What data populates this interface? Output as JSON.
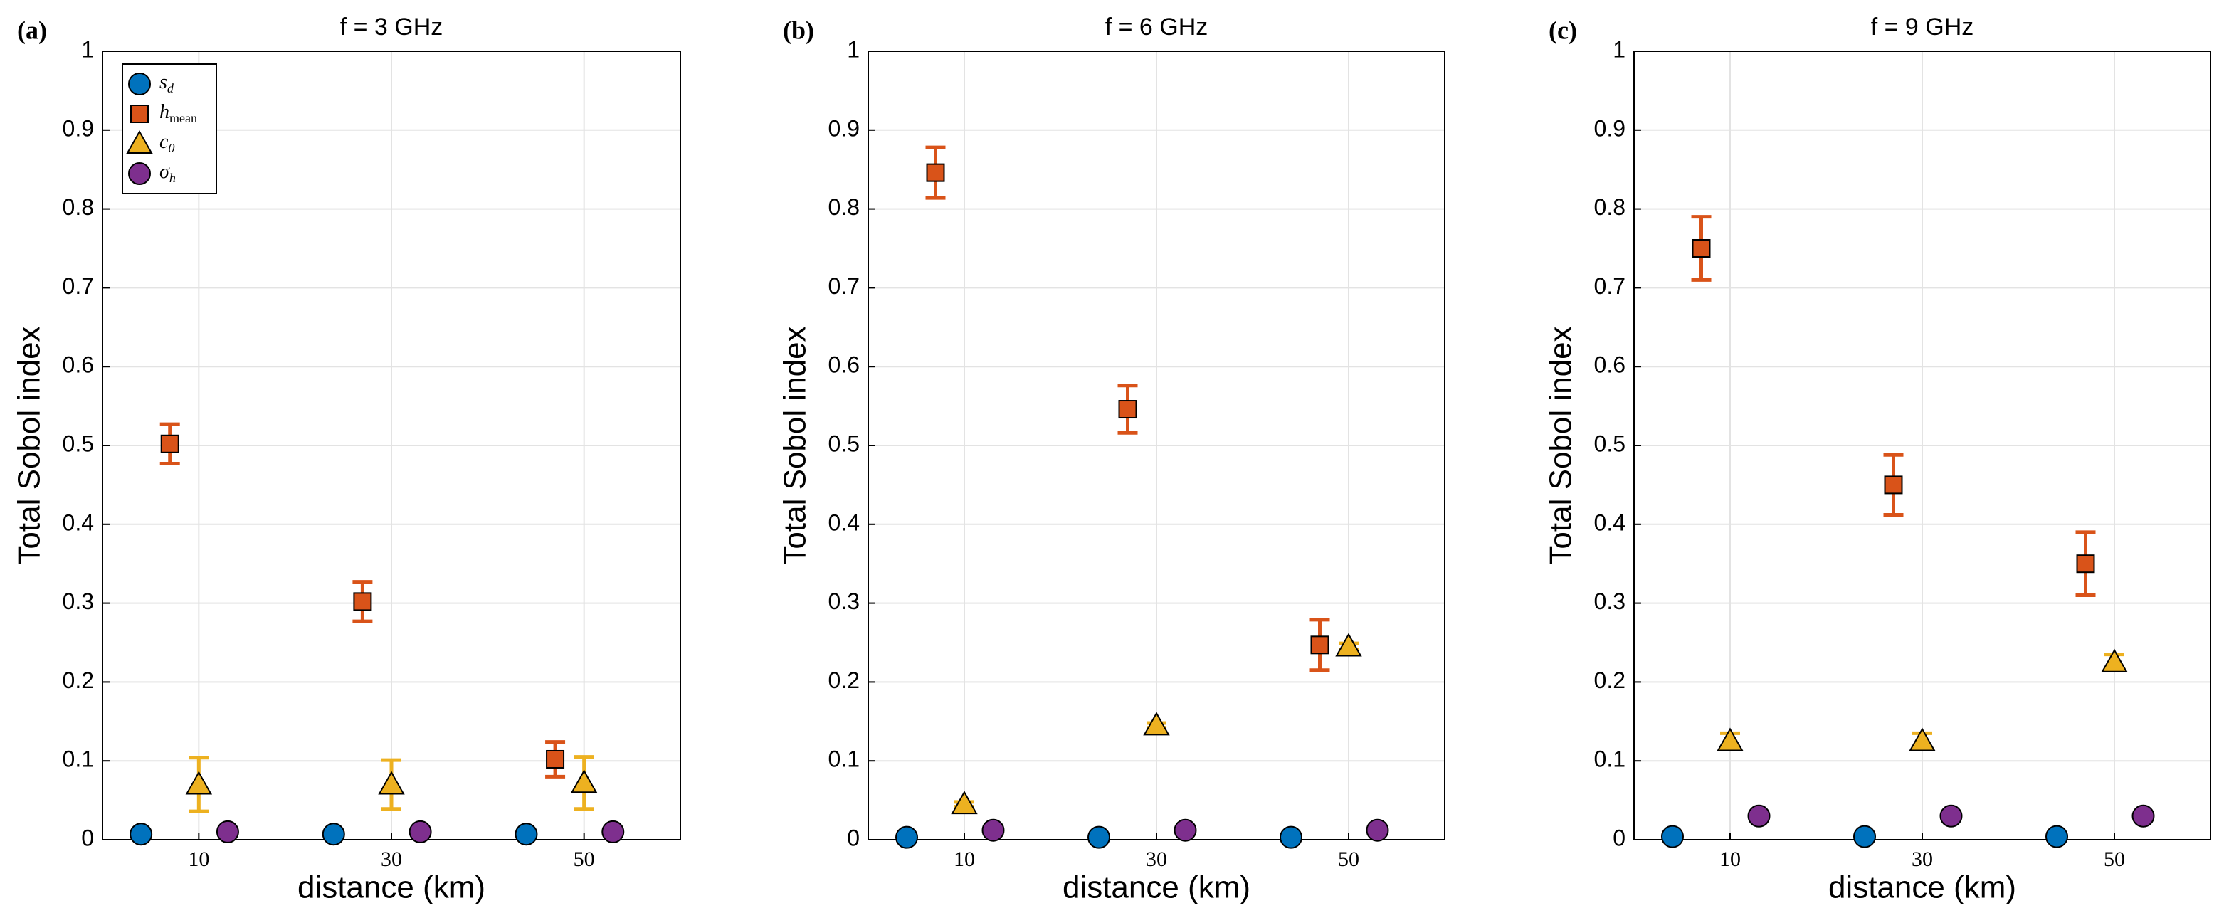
{
  "charts": [
    {
      "type": "scatter",
      "panel_label": "(a)",
      "title": "f = 3 GHz",
      "xlabel": "distance (km)",
      "ylabel": "Total Sobol index",
      "xlim": [
        0,
        60
      ],
      "xticks": [
        10,
        30,
        50
      ],
      "ylim": [
        0,
        1
      ],
      "yticks": [
        0,
        0.1,
        0.2,
        0.3,
        0.4,
        0.5,
        0.6,
        0.7,
        0.8,
        0.9,
        1
      ],
      "grid": true,
      "legend": "upper left",
      "series": [
        {
          "name": "s",
          "name_sub": "d",
          "marker": "circle",
          "color": "#0072BD",
          "x": [
            4,
            24,
            44
          ],
          "values": [
            0.007,
            0.007,
            0.007
          ]
        },
        {
          "name": "h",
          "name_sub": "mean",
          "marker": "square",
          "color": "#D95319",
          "x": [
            7,
            27,
            47
          ],
          "values": [
            0.502,
            0.302,
            0.102
          ],
          "errors": [
            0.025,
            0.025,
            0.022
          ]
        },
        {
          "name": "c",
          "name_sub": "0",
          "marker": "triangle",
          "color": "#EDB120",
          "x": [
            10,
            30,
            50
          ],
          "values": [
            0.07,
            0.07,
            0.072
          ],
          "errors": [
            0.034,
            0.031,
            0.033
          ]
        },
        {
          "name": "σ",
          "name_sub": "h",
          "marker": "circle",
          "color": "#7E2F8E",
          "x": [
            13,
            33,
            53
          ],
          "values": [
            0.01,
            0.01,
            0.01
          ]
        }
      ]
    },
    {
      "type": "scatter",
      "panel_label": "(b)",
      "title": "f = 6 GHz",
      "xlabel": "distance (km)",
      "ylabel": "Total Sobol index",
      "xlim": [
        0,
        60
      ],
      "xticks": [
        10,
        30,
        50
      ],
      "ylim": [
        0,
        1
      ],
      "yticks": [
        0,
        0.1,
        0.2,
        0.3,
        0.4,
        0.5,
        0.6,
        0.7,
        0.8,
        0.9,
        1
      ],
      "grid": true,
      "series": [
        {
          "marker": "circle",
          "color": "#0072BD",
          "x": [
            4,
            24,
            44
          ],
          "values": [
            0.003,
            0.003,
            0.003
          ]
        },
        {
          "marker": "square",
          "color": "#D95319",
          "x": [
            7,
            27,
            47
          ],
          "values": [
            0.846,
            0.546,
            0.247
          ],
          "errors": [
            0.032,
            0.03,
            0.032
          ]
        },
        {
          "marker": "triangle",
          "color": "#EDB120",
          "x": [
            10,
            30,
            50
          ],
          "values": [
            0.045,
            0.145,
            0.245
          ],
          "errors": [
            0.003,
            0.003,
            0.004
          ]
        },
        {
          "marker": "circle",
          "color": "#7E2F8E",
          "x": [
            13,
            33,
            53
          ],
          "values": [
            0.012,
            0.012,
            0.012
          ]
        }
      ]
    },
    {
      "type": "scatter",
      "panel_label": "(c)",
      "title": "f = 9 GHz",
      "xlabel": "distance (km)",
      "ylabel": "Total Sobol index",
      "xlim": [
        0,
        60
      ],
      "xticks": [
        10,
        30,
        50
      ],
      "ylim": [
        0,
        1
      ],
      "yticks": [
        0,
        0.1,
        0.2,
        0.3,
        0.4,
        0.5,
        0.6,
        0.7,
        0.8,
        0.9,
        1
      ],
      "grid": true,
      "series": [
        {
          "marker": "circle",
          "color": "#0072BD",
          "x": [
            4,
            24,
            44
          ],
          "values": [
            0.004,
            0.004,
            0.004
          ]
        },
        {
          "marker": "square",
          "color": "#D95319",
          "x": [
            7,
            27,
            47
          ],
          "values": [
            0.75,
            0.45,
            0.35
          ],
          "errors": [
            0.04,
            0.038,
            0.04
          ]
        },
        {
          "marker": "triangle",
          "color": "#EDB120",
          "x": [
            10,
            30,
            50
          ],
          "values": [
            0.125,
            0.125,
            0.225
          ],
          "errors": [
            0.01,
            0.01,
            0.01
          ]
        },
        {
          "marker": "circle",
          "color": "#7E2F8E",
          "x": [
            13,
            33,
            53
          ],
          "values": [
            0.03,
            0.03,
            0.03
          ]
        }
      ]
    }
  ]
}
